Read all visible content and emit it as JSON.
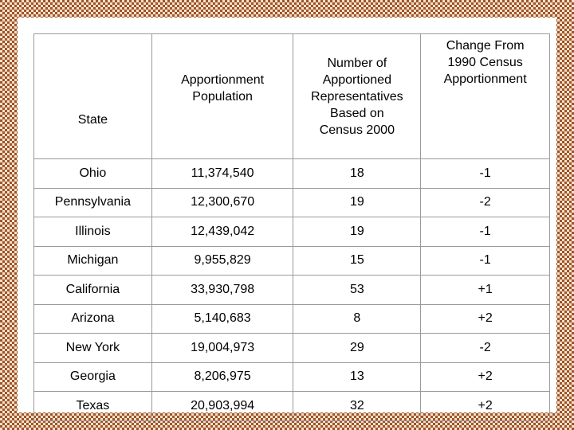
{
  "table": {
    "header": [
      [
        "State"
      ],
      [
        "Apportionment",
        "Population"
      ],
      [
        "Number of",
        "Apportioned",
        "Representatives",
        "Based on",
        "Census 2000"
      ],
      [
        "Change From",
        "1990 Census",
        "Apportionment"
      ]
    ],
    "rows": [
      [
        "Ohio",
        "11,374,540",
        "18",
        "-1"
      ],
      [
        "Pennsylvania",
        "12,300,670",
        "19",
        "-2"
      ],
      [
        "Illinois",
        "12,439,042",
        "19",
        "-1"
      ],
      [
        "Michigan",
        "9,955,829",
        "15",
        "-1"
      ],
      [
        "California",
        "33,930,798",
        "53",
        "+1"
      ],
      [
        "Arizona",
        "5,140,683",
        "8",
        "+2"
      ],
      [
        "New York",
        "19,004,973",
        "29",
        "-2"
      ],
      [
        "Georgia",
        "8,206,975",
        "13",
        "+2"
      ],
      [
        "Texas",
        "20,903,994",
        "32",
        "+2"
      ]
    ]
  }
}
